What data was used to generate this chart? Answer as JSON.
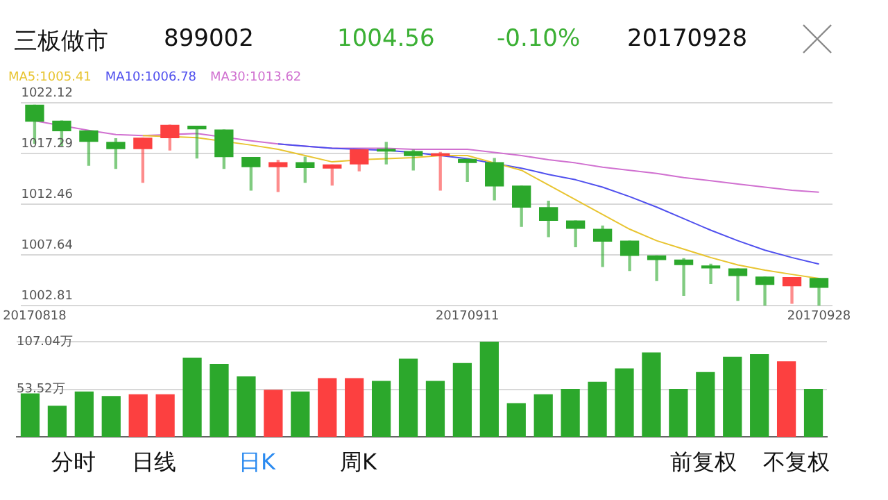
{
  "chart_data": [
    {
      "type": "candlestick",
      "title": "三板做市",
      "annotations": [
        "899002",
        "1004.56",
        "-0.10%",
        "20170928"
      ],
      "categories": [
        "20170818",
        null,
        null,
        null,
        null,
        null,
        null,
        null,
        null,
        null,
        null,
        null,
        null,
        null,
        null,
        null,
        "20170911",
        null,
        null,
        null,
        null,
        null,
        null,
        null,
        null,
        null,
        null,
        null,
        null,
        "20170928"
      ],
      "ohlc": [
        [
          1021.9,
          1021.9,
          1018.27,
          1020.37
        ],
        [
          1020.37,
          1020.4,
          1018.05,
          1019.45
        ],
        [
          1019.45,
          1019.45,
          1016.17,
          1018.45
        ],
        [
          1018.36,
          1018.71,
          1015.87,
          1017.75
        ],
        [
          1017.75,
          1018.75,
          1014.55,
          1018.75
        ],
        [
          1018.8,
          1020.0,
          1017.62,
          1019.98
        ],
        [
          1019.89,
          1019.89,
          1016.87,
          1019.63
        ],
        [
          1019.54,
          1019.54,
          1015.87,
          1017.0
        ],
        [
          1016.92,
          1016.92,
          1013.81,
          1016.04
        ],
        [
          1016.04,
          1016.65,
          1013.68,
          1016.43
        ],
        [
          1016.43,
          1016.96,
          1014.55,
          1015.95
        ],
        [
          1015.91,
          1016.22,
          1014.29,
          1016.22
        ],
        [
          1016.3,
          1017.66,
          1015.65,
          1017.66
        ],
        [
          1017.7,
          1018.36,
          1016.3,
          1017.53
        ],
        [
          1017.49,
          1017.62,
          1015.73,
          1017.09
        ],
        [
          1017.09,
          1017.4,
          1013.81,
          1017.27
        ],
        [
          1016.74,
          1016.74,
          1014.64,
          1016.43
        ],
        [
          1016.43,
          1016.83,
          1012.89,
          1014.2
        ],
        [
          1014.2,
          1014.2,
          1010.36,
          1012.19
        ],
        [
          1012.15,
          1012.76,
          1009.39,
          1010.93
        ],
        [
          1010.88,
          1010.88,
          1008.43,
          1010.18
        ],
        [
          1010.09,
          1010.4,
          1006.55,
          1008.96
        ],
        [
          1008.96,
          1008.96,
          1006.16,
          1007.6
        ],
        [
          1007.56,
          1007.56,
          1005.2,
          1007.21
        ],
        [
          1007.16,
          1007.3,
          1003.8,
          1006.73
        ],
        [
          1006.6,
          1006.77,
          1004.93,
          1006.42
        ],
        [
          1006.33,
          1006.33,
          1003.32,
          1005.68
        ],
        [
          1005.55,
          1005.55,
          1002.88,
          1004.85
        ],
        [
          1004.72,
          1005.5,
          1003.05,
          1005.5
        ],
        [
          1005.42,
          1005.42,
          1002.88,
          1004.56
        ]
      ],
      "colors": [
        "#2ca82c",
        "#2ca82c",
        "#2ca82c",
        "#2ca82c",
        "#fc4040",
        "#fc4040",
        "#2ca82c",
        "#2ca82c",
        "#2ca82c",
        "#fc4040",
        "#2ca82c",
        "#fc4040",
        "#fc4040",
        "#2ca82c",
        "#2ca82c",
        "#fc4040",
        "#2ca82c",
        "#2ca82c",
        "#2ca82c",
        "#2ca82c",
        "#2ca82c",
        "#2ca82c",
        "#2ca82c",
        "#2ca82c",
        "#2ca82c",
        "#2ca82c",
        "#2ca82c",
        "#2ca82c",
        "#fc4040",
        "#2ca82c"
      ],
      "series": [
        {
          "name": "MA5:1005.41",
          "type": "line",
          "color": "#e8c430",
          "values": [
            null,
            null,
            null,
            null,
            1019.0,
            1018.9,
            1018.8,
            null,
            1018.1,
            1017.7,
            1017.1,
            1016.5,
            1016.7,
            1016.8,
            1016.9,
            1017.1,
            1017.1,
            1016.4,
            1015.7,
            1014.3,
            1012.9,
            1011.5,
            1010.1,
            1009.0,
            1008.2,
            1007.4,
            1006.7,
            1006.2,
            1005.8,
            1005.41
          ]
        },
        {
          "name": "MA10:1006.78",
          "type": "line",
          "color": "#5050ee",
          "values": [
            null,
            null,
            null,
            null,
            null,
            null,
            null,
            null,
            null,
            1018.2,
            1018.0,
            1017.8,
            1017.7,
            1017.6,
            1017.4,
            1017.1,
            1016.8,
            null,
            1015.9,
            1015.3,
            1014.8,
            1014.1,
            1013.2,
            1012.2,
            1011.1,
            1010.0,
            1009.0,
            1008.1,
            1007.4,
            1006.78
          ]
        },
        {
          "name": "MA30:1013.62",
          "type": "line",
          "color": "#d070d0",
          "values": [
            1020.4,
            null,
            1019.5,
            1019.1,
            1019.0,
            1019.1,
            1019.2,
            null,
            1018.5,
            1018.2,
            1018.0,
            1017.8,
            1017.8,
            1017.8,
            1017.7,
            1017.7,
            1017.7,
            1017.4,
            1017.1,
            1016.7,
            1016.4,
            1016.0,
            1015.7,
            1015.4,
            1015.0,
            1014.7,
            1014.4,
            1014.1,
            1013.8,
            1013.62
          ]
        }
      ],
      "ylim": [
        1002.81,
        1022.12
      ],
      "yticks": [
        1002.81,
        1007.64,
        1012.46,
        1017.29,
        1022.12
      ],
      "grid": "y",
      "legend": "top left",
      "marker": "none",
      "line_style": "solid"
    },
    {
      "type": "bar",
      "annotations": [
        "分时",
        "日线",
        "日K",
        "周K",
        "前复权",
        "不复权"
      ],
      "categories": [
        null,
        null,
        null,
        null,
        null,
        null,
        null,
        null,
        null,
        null,
        null,
        null,
        null,
        null,
        null,
        null,
        null,
        null,
        null,
        null,
        null,
        null,
        null,
        null,
        null,
        null,
        null,
        null,
        null,
        null
      ],
      "values": [
        49,
        35,
        51,
        46,
        48,
        48,
        89,
        82,
        68,
        53,
        51,
        66,
        66,
        63,
        88,
        63,
        83,
        107.04,
        38,
        48,
        54,
        62,
        77,
        95,
        54,
        73,
        90,
        93,
        85,
        54
      ],
      "colors": [
        "#2ca82c",
        "#2ca82c",
        "#2ca82c",
        "#2ca82c",
        "#fc4040",
        "#fc4040",
        "#2ca82c",
        "#2ca82c",
        "#2ca82c",
        "#fc4040",
        "#2ca82c",
        "#fc4040",
        "#fc4040",
        "#2ca82c",
        "#2ca82c",
        "#2ca82c",
        "#2ca82c",
        "#2ca82c",
        "#2ca82c",
        "#2ca82c",
        "#2ca82c",
        "#2ca82c",
        "#2ca82c",
        "#2ca82c",
        "#2ca82c",
        "#2ca82c",
        "#2ca82c",
        "#2ca82c",
        "#fc4040",
        "#2ca82c"
      ],
      "ylim": [
        0,
        107.04
      ],
      "yticks": [
        {
          "value": 53.52,
          "label": "53.52万"
        },
        {
          "value": 107.04,
          "label": "107.04万"
        }
      ],
      "grid": "y",
      "tick_labels": "y"
    }
  ]
}
